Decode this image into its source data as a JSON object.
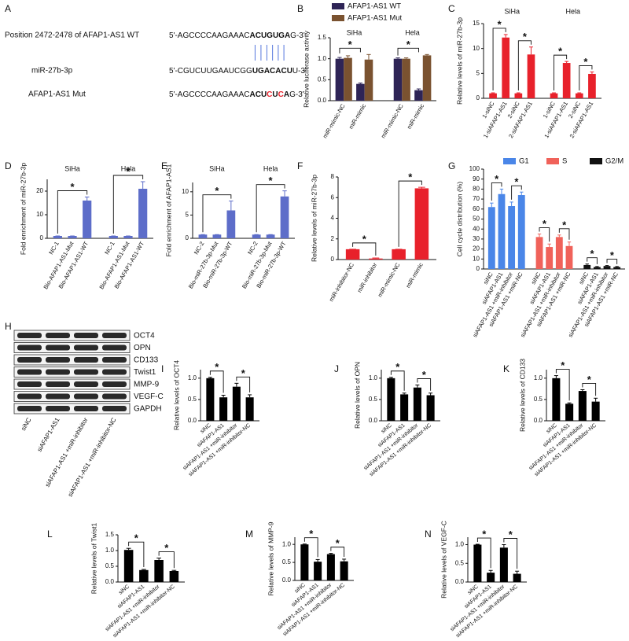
{
  "panel_a": {
    "label": "A",
    "rows": [
      {
        "name": "Position 2472-2478 of AFAP1-AS1 WT",
        "sequence": [
          {
            "text": "5'-AGCCCCAAGAAAC"
          },
          {
            "text": "ACUGUGA",
            "bold": true
          },
          {
            "text": "G-3'"
          }
        ]
      },
      {
        "name": "miR-27b-3p",
        "sequence": [
          {
            "text": "5'-CGUCUUGAAUCGG"
          },
          {
            "text": "UGACACU",
            "bold": true
          },
          {
            "text": "U-3'"
          }
        ]
      },
      {
        "name": "AFAP1-AS1 Mut",
        "sequence": [
          {
            "text": "5'-AGCCCCAAGAAAC"
          },
          {
            "text": "ACU",
            "bold": true
          },
          {
            "text": "C",
            "bold": true,
            "color": "#e8212b"
          },
          {
            "text": "U",
            "bold": true
          },
          {
            "text": "C",
            "bold": true,
            "color": "#e8212b"
          },
          {
            "text": "A",
            "bold": true
          },
          {
            "text": "G-3'"
          }
        ]
      }
    ]
  },
  "panel_h": {
    "label": "H",
    "proteins": [
      "OCT4",
      "OPN",
      "CD133",
      "Twist1",
      "MMP-9",
      "VEGF-C",
      "GAPDH"
    ],
    "lanes": [
      "siNC",
      "siAFAP1-AS1",
      "siAFAP1-AS1 +miR-inhibitor",
      "siAFAP1-AS1 +miR-inhibitor-NC"
    ]
  },
  "chart_data": [
    {
      "type": "bar",
      "label": "B",
      "ylabel": "Relative luciferase activity",
      "categories": [
        "miR-mimic-NC",
        "miR-mimic",
        "miR-mimic-NC",
        "miR-mimic"
      ],
      "group_labels": [
        "SiHa",
        "Hela"
      ],
      "series": [
        {
          "name": "AFAP1-AS1 WT",
          "color": "#2e2456",
          "values": [
            1.0,
            0.4,
            1.0,
            0.25
          ],
          "errors": [
            0.03,
            0.02,
            0.02,
            0.03
          ]
        },
        {
          "name": "AFAP1-AS1 Mut",
          "color": "#7a5230",
          "values": [
            1.02,
            0.98,
            1.0,
            1.08
          ],
          "errors": [
            0.05,
            0.12,
            0.02,
            0.02
          ]
        }
      ],
      "ylim": [
        0,
        1.5
      ],
      "yticks": [
        {
          "value": 0,
          "label": "0.0"
        },
        {
          "value": 0.5,
          "label": "0.5"
        },
        {
          "value": 1,
          "label": "1.0"
        },
        {
          "value": 1.5,
          "label": "1.5"
        }
      ],
      "significance": [
        [
          0,
          1
        ],
        [
          2,
          3
        ]
      ],
      "significance_label": "*"
    },
    {
      "type": "bar",
      "label": "C",
      "ylabel": "Relative levels of miR-27b-3p",
      "categories": [
        "1-siNC",
        "1-siAFAP1-AS1",
        "2-siNC",
        "2-siAFAP1-AS1",
        "1-siNC",
        "1-siAFAP1-AS1",
        "2-siNC",
        "2-siAFAP1-AS1"
      ],
      "group_labels": [
        "SiHa",
        "Hela"
      ],
      "values": [
        1,
        12.2,
        1,
        8.8,
        1,
        7.1,
        1,
        4.9
      ],
      "errors": [
        0.1,
        0.6,
        0.1,
        1.5,
        0.1,
        0.3,
        0.1,
        0.4
      ],
      "color": "#e8212b",
      "ylim": [
        0,
        15
      ],
      "yticks": [
        0,
        5,
        10,
        15
      ],
      "significance": [
        [
          0,
          1
        ],
        [
          2,
          3
        ],
        [
          4,
          5
        ],
        [
          6,
          7
        ]
      ],
      "significance_label": "*"
    },
    {
      "type": "bar",
      "label": "D",
      "ylabel": "Fold enrichment of miR-27b-3p",
      "categories": [
        "NC-1",
        "Bio-AFAP1-AS1-Mut",
        "Bio-AFAP1-AS1-WT",
        "NC-1",
        "Bio-AFAP1-AS1-Mut",
        "Bio-AFAP1-AS1-WT"
      ],
      "group_labels": [
        "SiHa",
        "Hela"
      ],
      "values": [
        1,
        1,
        16,
        1,
        1,
        21
      ],
      "errors": [
        0,
        0,
        1.5,
        0,
        0,
        3
      ],
      "color": "#5d6dc9",
      "ylim": [
        0,
        25
      ],
      "yticks": [
        0,
        10,
        20
      ],
      "significance": [
        [
          0,
          2
        ],
        [
          3,
          5
        ]
      ],
      "significance_label": "*"
    },
    {
      "type": "bar",
      "label": "E",
      "ylabel": "Fold enrichment of AFAP1-AS1",
      "categories": [
        "NC-2",
        "Bio-miR-27b-3p-Mut",
        "Bio-miR-27b-3p-WT",
        "NC-2",
        "Bio-miR-27b-3p-Mut",
        "Bio-miR-27b-3p-WT"
      ],
      "group_labels": [
        "SiHa",
        "Hela"
      ],
      "values": [
        0.8,
        0.8,
        6,
        0.8,
        0.8,
        9
      ],
      "errors": [
        0,
        0,
        2,
        0,
        0,
        1.2
      ],
      "color": "#5d6dc9",
      "ylim": [
        0,
        12
      ],
      "yticks": [
        0,
        5,
        10
      ],
      "significance": [
        [
          0,
          2
        ],
        [
          3,
          5
        ]
      ],
      "significance_label": "*"
    },
    {
      "type": "bar",
      "label": "F",
      "ylabel": "Relative levels of miR-27b-3p",
      "categories": [
        "miR-inhibitor-NC",
        "miR-inhibitor",
        "miR-mimic-NC",
        "miR-mimic"
      ],
      "values": [
        1,
        0.1,
        1,
        6.9
      ],
      "errors": [
        0,
        0.05,
        0,
        0.1
      ],
      "color": "#e8212b",
      "ylim": [
        0,
        8
      ],
      "yticks": [
        0,
        2,
        4,
        6,
        8
      ],
      "significance": [
        [
          0,
          1
        ],
        [
          2,
          3
        ]
      ],
      "significance_label": "*"
    },
    {
      "type": "bar",
      "label": "G",
      "ylabel": "Cell cycle distribution (%)",
      "categories": [
        "siNC",
        "siAFAP1-AS1",
        "siAFAP1-AS1 +miR-inhibitor",
        "siAFAP1-AS1 +miR-NC"
      ],
      "series": [
        {
          "name": "G1",
          "color": "#4a86e8",
          "values": [
            62,
            75,
            63,
            74
          ],
          "errors": [
            4,
            5,
            4,
            3
          ]
        },
        {
          "name": "S",
          "color": "#f0625a",
          "values": [
            32,
            22,
            32,
            23
          ],
          "errors": [
            3,
            3,
            2,
            4
          ]
        },
        {
          "name": "G2/M",
          "color": "#111111",
          "values": [
            4,
            2,
            3,
            2
          ],
          "errors": [
            1,
            0.5,
            0.5,
            0.5
          ]
        }
      ],
      "ylim": [
        0,
        100
      ],
      "yticks": [
        0,
        10,
        20,
        30,
        40,
        50,
        60,
        70,
        80,
        90,
        100
      ],
      "significance": [
        [
          0,
          1
        ],
        [
          2,
          3
        ]
      ],
      "significance_label": "*"
    },
    {
      "type": "bar",
      "label": "I",
      "ylabel": "Relative levels of OCT4",
      "categories": [
        "siNC",
        "siAFAP1-AS1",
        "siAFAP1-AS1 +miR-inhibitor",
        "siAFAP1-AS1 +miR-inhibitor-NC"
      ],
      "values": [
        1.0,
        0.55,
        0.8,
        0.55
      ],
      "errors": [
        0.02,
        0.05,
        0.08,
        0.06
      ],
      "color": "#000000",
      "ylim": [
        0,
        1.2
      ],
      "yticks": [
        {
          "value": 0,
          "label": "0.0"
        },
        {
          "value": 0.5,
          "label": "0.5"
        },
        {
          "value": 1,
          "label": "1.0"
        }
      ],
      "significance": [
        [
          0,
          1
        ],
        [
          2,
          3
        ]
      ],
      "significance_label": "*"
    },
    {
      "type": "bar",
      "label": "J",
      "ylabel": "Relative levels of OPN",
      "categories": [
        "siNC",
        "siAFAP1-AS1",
        "siAFAP1-AS1 +miR-inhibitor",
        "siAFAP1-AS1 +miR-inhibitor-NC"
      ],
      "values": [
        1.0,
        0.62,
        0.78,
        0.6
      ],
      "errors": [
        0.02,
        0.03,
        0.06,
        0.05
      ],
      "color": "#000000",
      "ylim": [
        0,
        1.2
      ],
      "yticks": [
        {
          "value": 0,
          "label": "0.0"
        },
        {
          "value": 0.5,
          "label": "0.5"
        },
        {
          "value": 1,
          "label": "1.0"
        }
      ],
      "significance": [
        [
          0,
          1
        ],
        [
          2,
          3
        ]
      ],
      "significance_label": "*"
    },
    {
      "type": "bar",
      "label": "K",
      "ylabel": "Relative levels of CD133",
      "categories": [
        "siNC",
        "siAFAP1-AS1",
        "siAFAP1-AS1 +miR-inhibitor",
        "siAFAP1-AS1 +miR-inhibitor-NC"
      ],
      "values": [
        1.0,
        0.4,
        0.7,
        0.45
      ],
      "errors": [
        0.06,
        0.02,
        0.03,
        0.08
      ],
      "color": "#000000",
      "ylim": [
        0,
        1.2
      ],
      "yticks": [
        {
          "value": 0,
          "label": "0.0"
        },
        {
          "value": 0.5,
          "label": "0.5"
        },
        {
          "value": 1,
          "label": "1.0"
        }
      ],
      "significance": [
        [
          0,
          1
        ],
        [
          2,
          3
        ]
      ],
      "significance_label": "*"
    },
    {
      "type": "bar",
      "label": "L",
      "ylabel": "Relative levels of Twist1",
      "categories": [
        "siNC",
        "siAFAP1-AS1",
        "siAFAP1-AS1 +miR-inhibitor",
        "siAFAP1-AS1 +miR-inhibitor-NC"
      ],
      "values": [
        1.02,
        0.38,
        0.7,
        0.35
      ],
      "errors": [
        0.05,
        0.02,
        0.06,
        0.02
      ],
      "color": "#000000",
      "ylim": [
        0,
        1.5
      ],
      "yticks": [
        {
          "value": 0,
          "label": "0.0"
        },
        {
          "value": 0.5,
          "label": "0.5"
        },
        {
          "value": 1,
          "label": "1.0"
        },
        {
          "value": 1.5,
          "label": "1.5"
        }
      ],
      "significance": [
        [
          0,
          1
        ],
        [
          2,
          3
        ]
      ],
      "significance_label": "*"
    },
    {
      "type": "bar",
      "label": "M",
      "ylabel": "Relative levels of MMP-9",
      "categories": [
        "siNC",
        "siAFAP1-AS1",
        "siAFAP1-AS1 +miR-inhibitor",
        "siAFAP1-AS1 +miR-inhibitor-NC"
      ],
      "values": [
        1.0,
        0.52,
        0.73,
        0.53
      ],
      "errors": [
        0.01,
        0.06,
        0.02,
        0.06
      ],
      "color": "#000000",
      "ylim": [
        0,
        1.2
      ],
      "yticks": [
        {
          "value": 0,
          "label": "0.0"
        },
        {
          "value": 0.5,
          "label": "0.5"
        },
        {
          "value": 1,
          "label": "1.0"
        }
      ],
      "significance": [
        [
          0,
          1
        ],
        [
          2,
          3
        ]
      ],
      "significance_label": "*"
    },
    {
      "type": "bar",
      "label": "N",
      "ylabel": "Relative levels of VEGF-C",
      "categories": [
        "siNC",
        "siAFAP1-AS1",
        "siAFAP1-AS1 +miR-inhibitor",
        "siAFAP1-AS1 +miR-inhibitor-NC"
      ],
      "values": [
        1.0,
        0.25,
        0.92,
        0.22
      ],
      "errors": [
        0.01,
        0.06,
        0.08,
        0.07
      ],
      "color": "#000000",
      "ylim": [
        0,
        1.2
      ],
      "yticks": [
        {
          "value": 0,
          "label": "0.0"
        },
        {
          "value": 0.5,
          "label": "0.5"
        },
        {
          "value": 1,
          "label": "1.0"
        }
      ],
      "significance": [
        [
          0,
          1
        ],
        [
          2,
          3
        ]
      ],
      "significance_label": "*"
    }
  ]
}
